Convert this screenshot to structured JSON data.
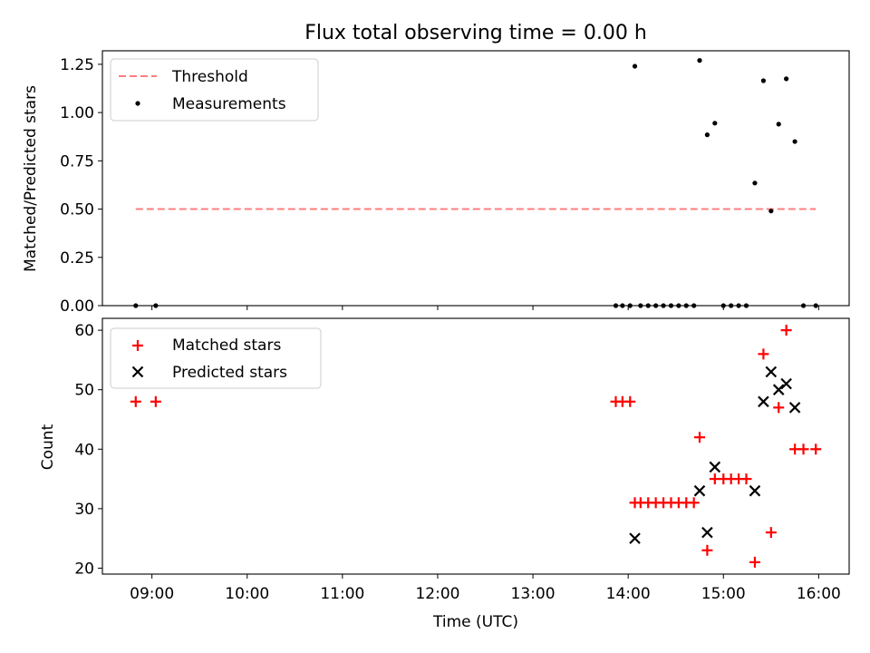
{
  "chart_data": [
    {
      "type": "scatter",
      "title": "Flux total observing time = 0.00 h",
      "ylabel": "Matched/Predicted stars",
      "xlabel": "",
      "xlim_hours": [
        8.48,
        16.32
      ],
      "ylim": [
        0,
        1.32
      ],
      "yticks": [
        0,
        0.25,
        0.5,
        0.75,
        1.0,
        1.25
      ],
      "ytick_labels": [
        "0.00",
        "0.25",
        "0.50",
        "0.75",
        "1.00",
        "1.25"
      ],
      "legend": {
        "position": "top-left",
        "entries": [
          "Threshold",
          "Measurements"
        ]
      },
      "threshold": {
        "name": "Threshold",
        "value": 0.5,
        "x_start": 8.83,
        "x_end": 15.97,
        "color": "#ff7f7f"
      },
      "series": [
        {
          "name": "Measurements",
          "color": "#000000",
          "points": [
            [
              8.83,
              0
            ],
            [
              9.04,
              0
            ],
            [
              13.87,
              0
            ],
            [
              13.94,
              0
            ],
            [
              14.02,
              0
            ],
            [
              14.07,
              1.24
            ],
            [
              14.13,
              0
            ],
            [
              14.21,
              0
            ],
            [
              14.29,
              0
            ],
            [
              14.37,
              0
            ],
            [
              14.45,
              0
            ],
            [
              14.53,
              0
            ],
            [
              14.61,
              0
            ],
            [
              14.69,
              0
            ],
            [
              14.75,
              1.27
            ],
            [
              14.83,
              0.885
            ],
            [
              14.91,
              0.945
            ],
            [
              15.0,
              0
            ],
            [
              15.08,
              0
            ],
            [
              15.16,
              0
            ],
            [
              15.24,
              0
            ],
            [
              15.33,
              0.635
            ],
            [
              15.42,
              1.165
            ],
            [
              15.5,
              0.49
            ],
            [
              15.58,
              0.94
            ],
            [
              15.66,
              1.175
            ],
            [
              15.75,
              0.85
            ],
            [
              15.84,
              0
            ],
            [
              15.97,
              0
            ]
          ]
        }
      ]
    },
    {
      "type": "scatter",
      "title": "",
      "ylabel": "Count",
      "xlabel": "Time (UTC)",
      "xlim_hours": [
        8.48,
        16.32
      ],
      "ylim": [
        19,
        62
      ],
      "yticks": [
        20,
        30,
        40,
        50,
        60
      ],
      "ytick_labels": [
        "20",
        "30",
        "40",
        "50",
        "60"
      ],
      "xticks_hours": [
        9,
        10,
        11,
        12,
        13,
        14,
        15,
        16
      ],
      "xtick_labels": [
        "09:00",
        "10:00",
        "11:00",
        "12:00",
        "13:00",
        "14:00",
        "15:00",
        "16:00"
      ],
      "legend": {
        "position": "top-left",
        "entries": [
          "Matched stars",
          "Predicted stars"
        ]
      },
      "series": [
        {
          "name": "Matched stars",
          "marker": "plus",
          "color": "#ff0000",
          "points": [
            [
              8.83,
              48
            ],
            [
              9.04,
              48
            ],
            [
              13.87,
              48
            ],
            [
              13.94,
              48
            ],
            [
              14.02,
              48
            ],
            [
              14.07,
              31
            ],
            [
              14.13,
              31
            ],
            [
              14.21,
              31
            ],
            [
              14.29,
              31
            ],
            [
              14.37,
              31
            ],
            [
              14.45,
              31
            ],
            [
              14.53,
              31
            ],
            [
              14.61,
              31
            ],
            [
              14.69,
              31
            ],
            [
              14.75,
              42
            ],
            [
              14.83,
              23
            ],
            [
              14.91,
              35
            ],
            [
              15.0,
              35
            ],
            [
              15.08,
              35
            ],
            [
              15.16,
              35
            ],
            [
              15.24,
              35
            ],
            [
              15.33,
              21
            ],
            [
              15.42,
              56
            ],
            [
              15.5,
              26
            ],
            [
              15.58,
              47
            ],
            [
              15.66,
              60
            ],
            [
              15.75,
              40
            ],
            [
              15.84,
              40
            ],
            [
              15.97,
              40
            ]
          ]
        },
        {
          "name": "Predicted stars",
          "marker": "x",
          "color": "#000000",
          "points": [
            [
              14.07,
              25
            ],
            [
              14.75,
              33
            ],
            [
              14.83,
              26
            ],
            [
              14.91,
              37
            ],
            [
              15.33,
              33
            ],
            [
              15.42,
              48
            ],
            [
              15.5,
              53
            ],
            [
              15.58,
              50
            ],
            [
              15.66,
              51
            ],
            [
              15.75,
              47
            ]
          ]
        }
      ]
    }
  ]
}
